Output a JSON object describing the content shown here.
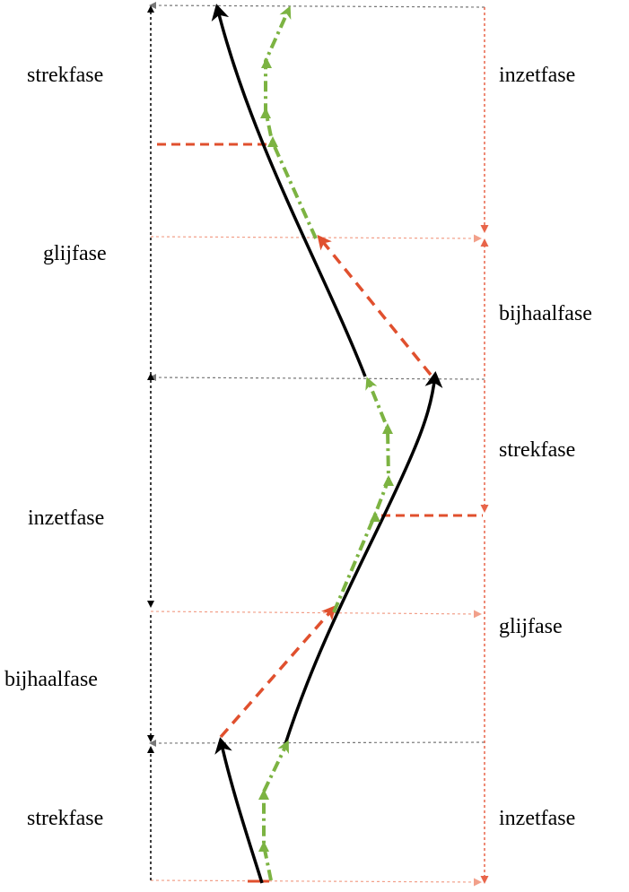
{
  "diagram": {
    "left_phases": [
      {
        "id": "strekfase-1",
        "label": "strekfase"
      },
      {
        "id": "glijfase",
        "label": "glijfase"
      },
      {
        "id": "inzetfase",
        "label": "inzetfase"
      },
      {
        "id": "bijhaalfase",
        "label": "bijhaalfase"
      },
      {
        "id": "strekfase-2",
        "label": "strekfase"
      }
    ],
    "right_phases": [
      {
        "id": "inzetfase-1",
        "label": "inzetfase"
      },
      {
        "id": "bijhaalfase",
        "label": "bijhaalfase"
      },
      {
        "id": "strekfase",
        "label": "strekfase"
      },
      {
        "id": "glijfase",
        "label": "glijfase"
      },
      {
        "id": "inzetfase-2",
        "label": "inzetfase"
      }
    ],
    "colors": {
      "black_path": "#000000",
      "green_path": "#7cb342",
      "orange_path": "#e0502e",
      "gray_guide": "#777777",
      "salmon_guide": "#f2a08a",
      "orange_guide": "#e8654a"
    }
  }
}
